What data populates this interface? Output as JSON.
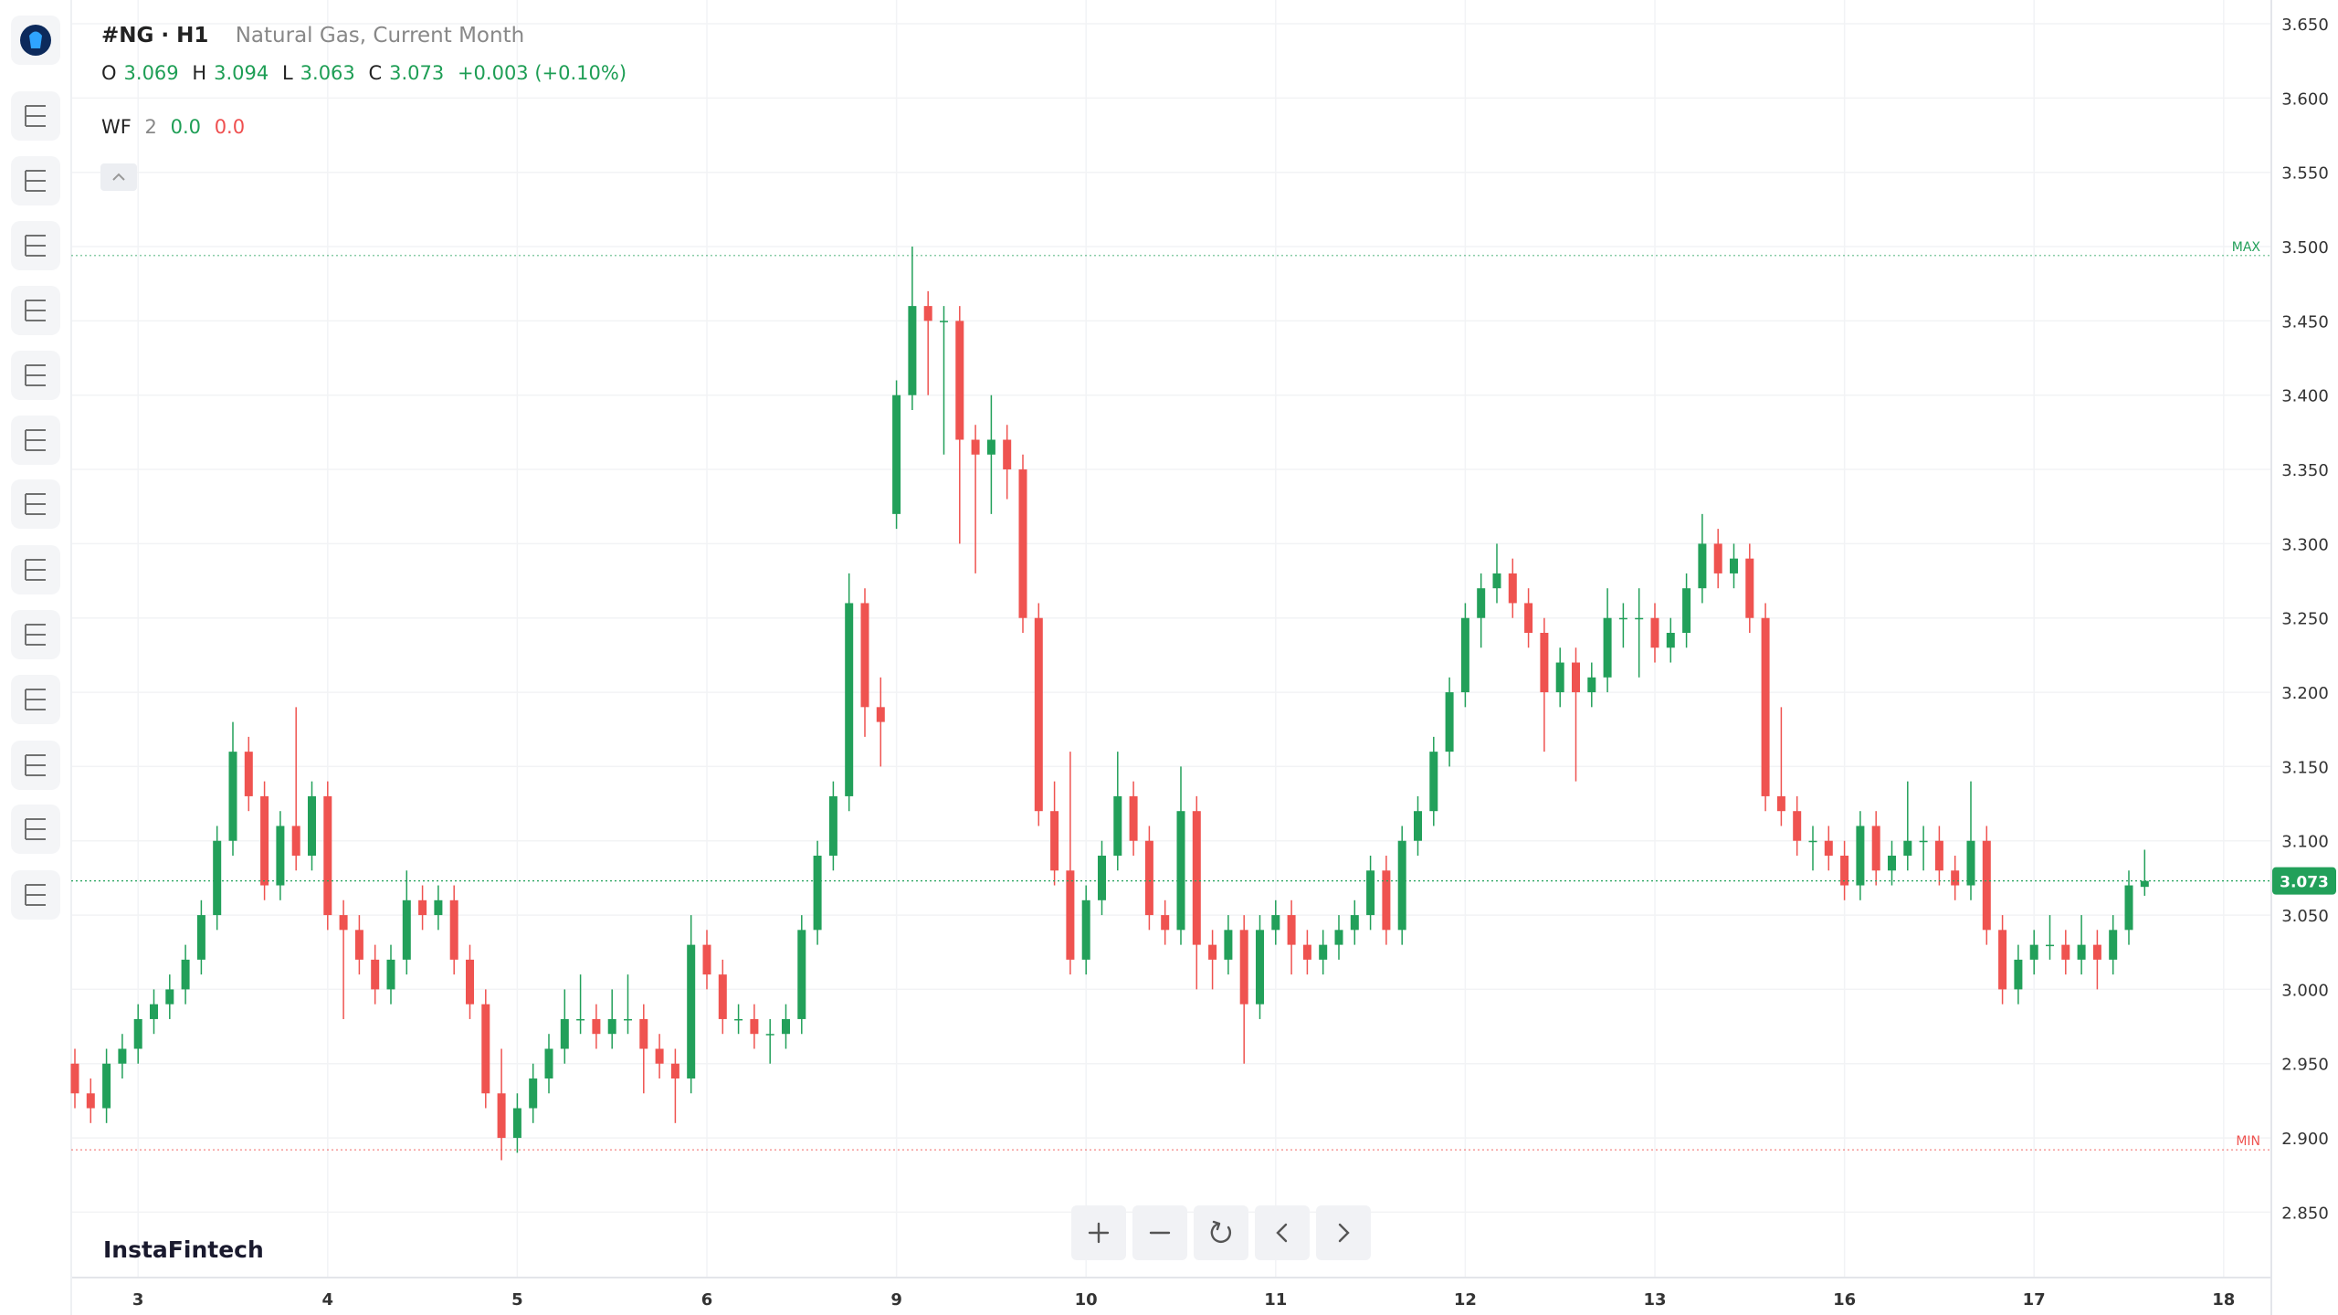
{
  "header": {
    "symbol": "#NG · H1",
    "description": "Natural Gas, Current Month",
    "labels": [
      "O",
      "H",
      "L",
      "C"
    ],
    "change": "+0.003 (+0.10%)",
    "indicator": {
      "name": "WF",
      "period": "2",
      "up": "0.0",
      "down": "0.0"
    },
    "watermark": "InstaFintech"
  },
  "chart_data": {
    "type": "candlestick",
    "up_color": "#22a05a",
    "down_color": "#ef5350",
    "grid": true,
    "ylim": [
      2.806,
      3.666
    ],
    "yticks": [
      {
        "value": 2.85,
        "label": "2.850"
      },
      {
        "value": 2.9,
        "label": "2.900"
      },
      {
        "value": 2.95,
        "label": "2.950"
      },
      {
        "value": 3.0,
        "label": "3.000"
      },
      {
        "value": 3.05,
        "label": "3.050"
      },
      {
        "value": 3.1,
        "label": "3.100"
      },
      {
        "value": 3.15,
        "label": "3.150"
      },
      {
        "value": 3.2,
        "label": "3.200"
      },
      {
        "value": 3.25,
        "label": "3.250"
      },
      {
        "value": 3.3,
        "label": "3.300"
      },
      {
        "value": 3.35,
        "label": "3.350"
      },
      {
        "value": 3.4,
        "label": "3.400"
      },
      {
        "value": 3.45,
        "label": "3.450"
      },
      {
        "value": 3.5,
        "label": "3.500"
      },
      {
        "value": 3.55,
        "label": "3.550"
      },
      {
        "value": 3.6,
        "label": "3.600"
      },
      {
        "value": 3.65,
        "label": "3.650"
      }
    ],
    "max_line": {
      "label": "MAX",
      "value": 3.494
    },
    "min_line": {
      "label": "MIN",
      "value": 2.892
    },
    "categories": [
      null,
      null,
      null,
      null,
      "3",
      null,
      null,
      null,
      null,
      null,
      null,
      null,
      null,
      null,
      null,
      null,
      "4",
      null,
      null,
      null,
      null,
      null,
      null,
      null,
      null,
      null,
      null,
      null,
      "5",
      null,
      null,
      null,
      null,
      null,
      null,
      null,
      null,
      null,
      null,
      null,
      "6",
      null,
      null,
      null,
      null,
      null,
      null,
      null,
      null,
      null,
      null,
      null,
      "9",
      null,
      null,
      null,
      null,
      null,
      null,
      null,
      null,
      null,
      null,
      null,
      "10",
      null,
      null,
      null,
      null,
      null,
      null,
      null,
      null,
      null,
      null,
      null,
      "11",
      null,
      null,
      null,
      null,
      null,
      null,
      null,
      null,
      null,
      null,
      null,
      "12",
      null,
      null,
      null,
      null,
      null,
      null,
      null,
      null,
      null,
      null,
      null,
      "13",
      null,
      null,
      null,
      null,
      null,
      null,
      null,
      null,
      null,
      null,
      null,
      "16",
      null,
      null,
      null,
      null,
      null,
      null,
      null,
      null,
      null,
      null,
      null,
      "17",
      null,
      null,
      null,
      null,
      null,
      null,
      null,
      null,
      null,
      null,
      null,
      "18"
    ],
    "ohlc": [
      [
        2.95,
        2.96,
        2.92,
        2.93
      ],
      [
        2.93,
        2.94,
        2.91,
        2.92
      ],
      [
        2.92,
        2.96,
        2.91,
        2.95
      ],
      [
        2.95,
        2.97,
        2.94,
        2.96
      ],
      [
        2.96,
        2.99,
        2.95,
        2.98
      ],
      [
        2.98,
        3.0,
        2.97,
        2.99
      ],
      [
        2.99,
        3.01,
        2.98,
        3.0
      ],
      [
        3.0,
        3.03,
        2.99,
        3.02
      ],
      [
        3.02,
        3.06,
        3.01,
        3.05
      ],
      [
        3.05,
        3.11,
        3.04,
        3.1
      ],
      [
        3.1,
        3.18,
        3.09,
        3.16
      ],
      [
        3.16,
        3.17,
        3.12,
        3.13
      ],
      [
        3.13,
        3.14,
        3.06,
        3.07
      ],
      [
        3.07,
        3.12,
        3.06,
        3.11
      ],
      [
        3.11,
        3.19,
        3.08,
        3.09
      ],
      [
        3.09,
        3.14,
        3.08,
        3.13
      ],
      [
        3.13,
        3.14,
        3.04,
        3.05
      ],
      [
        3.05,
        3.06,
        2.98,
        3.04
      ],
      [
        3.04,
        3.05,
        3.01,
        3.02
      ],
      [
        3.02,
        3.03,
        2.99,
        3.0
      ],
      [
        3.0,
        3.03,
        2.99,
        3.02
      ],
      [
        3.02,
        3.08,
        3.01,
        3.06
      ],
      [
        3.06,
        3.07,
        3.04,
        3.05
      ],
      [
        3.05,
        3.07,
        3.04,
        3.06
      ],
      [
        3.06,
        3.07,
        3.01,
        3.02
      ],
      [
        3.02,
        3.03,
        2.98,
        2.99
      ],
      [
        2.99,
        3.0,
        2.92,
        2.93
      ],
      [
        2.93,
        2.96,
        2.885,
        2.9
      ],
      [
        2.9,
        2.93,
        2.89,
        2.92
      ],
      [
        2.92,
        2.95,
        2.91,
        2.94
      ],
      [
        2.94,
        2.97,
        2.93,
        2.96
      ],
      [
        2.96,
        3.0,
        2.95,
        2.98
      ],
      [
        2.98,
        3.01,
        2.97,
        2.98
      ],
      [
        2.98,
        2.99,
        2.96,
        2.97
      ],
      [
        2.97,
        3.0,
        2.96,
        2.98
      ],
      [
        2.98,
        3.01,
        2.97,
        2.98
      ],
      [
        2.98,
        2.99,
        2.93,
        2.96
      ],
      [
        2.96,
        2.97,
        2.94,
        2.95
      ],
      [
        2.95,
        2.96,
        2.91,
        2.94
      ],
      [
        2.94,
        3.05,
        2.93,
        3.03
      ],
      [
        3.03,
        3.04,
        3.0,
        3.01
      ],
      [
        3.01,
        3.02,
        2.97,
        2.98
      ],
      [
        2.98,
        2.99,
        2.97,
        2.98
      ],
      [
        2.98,
        2.99,
        2.96,
        2.97
      ],
      [
        2.97,
        2.98,
        2.95,
        2.97
      ],
      [
        2.97,
        2.99,
        2.96,
        2.98
      ],
      [
        2.98,
        3.05,
        2.97,
        3.04
      ],
      [
        3.04,
        3.1,
        3.03,
        3.09
      ],
      [
        3.09,
        3.14,
        3.08,
        3.13
      ],
      [
        3.13,
        3.28,
        3.12,
        3.26
      ],
      [
        3.26,
        3.27,
        3.17,
        3.19
      ],
      [
        3.19,
        3.21,
        3.15,
        3.18
      ],
      [
        3.32,
        3.41,
        3.31,
        3.4
      ],
      [
        3.4,
        3.5,
        3.39,
        3.46
      ],
      [
        3.46,
        3.47,
        3.4,
        3.45
      ],
      [
        3.45,
        3.46,
        3.36,
        3.45
      ],
      [
        3.45,
        3.46,
        3.3,
        3.37
      ],
      [
        3.37,
        3.38,
        3.28,
        3.36
      ],
      [
        3.36,
        3.4,
        3.32,
        3.37
      ],
      [
        3.37,
        3.38,
        3.33,
        3.35
      ],
      [
        3.35,
        3.36,
        3.24,
        3.25
      ],
      [
        3.25,
        3.26,
        3.11,
        3.12
      ],
      [
        3.12,
        3.14,
        3.07,
        3.08
      ],
      [
        3.08,
        3.16,
        3.01,
        3.02
      ],
      [
        3.02,
        3.07,
        3.01,
        3.06
      ],
      [
        3.06,
        3.1,
        3.05,
        3.09
      ],
      [
        3.09,
        3.16,
        3.08,
        3.13
      ],
      [
        3.13,
        3.14,
        3.09,
        3.1
      ],
      [
        3.1,
        3.11,
        3.04,
        3.05
      ],
      [
        3.05,
        3.06,
        3.03,
        3.04
      ],
      [
        3.04,
        3.15,
        3.03,
        3.12
      ],
      [
        3.12,
        3.13,
        3.0,
        3.03
      ],
      [
        3.03,
        3.04,
        3.0,
        3.02
      ],
      [
        3.02,
        3.05,
        3.01,
        3.04
      ],
      [
        3.04,
        3.05,
        2.95,
        2.99
      ],
      [
        2.99,
        3.05,
        2.98,
        3.04
      ],
      [
        3.04,
        3.06,
        3.03,
        3.05
      ],
      [
        3.05,
        3.06,
        3.01,
        3.03
      ],
      [
        3.03,
        3.04,
        3.01,
        3.02
      ],
      [
        3.02,
        3.04,
        3.01,
        3.03
      ],
      [
        3.03,
        3.05,
        3.02,
        3.04
      ],
      [
        3.04,
        3.06,
        3.03,
        3.05
      ],
      [
        3.05,
        3.09,
        3.04,
        3.08
      ],
      [
        3.08,
        3.09,
        3.03,
        3.04
      ],
      [
        3.04,
        3.11,
        3.03,
        3.1
      ],
      [
        3.1,
        3.13,
        3.09,
        3.12
      ],
      [
        3.12,
        3.17,
        3.11,
        3.16
      ],
      [
        3.16,
        3.21,
        3.15,
        3.2
      ],
      [
        3.2,
        3.26,
        3.19,
        3.25
      ],
      [
        3.25,
        3.28,
        3.23,
        3.27
      ],
      [
        3.27,
        3.3,
        3.26,
        3.28
      ],
      [
        3.28,
        3.29,
        3.25,
        3.26
      ],
      [
        3.26,
        3.27,
        3.23,
        3.24
      ],
      [
        3.24,
        3.25,
        3.16,
        3.2
      ],
      [
        3.2,
        3.23,
        3.19,
        3.22
      ],
      [
        3.22,
        3.23,
        3.14,
        3.2
      ],
      [
        3.2,
        3.22,
        3.19,
        3.21
      ],
      [
        3.21,
        3.27,
        3.2,
        3.25
      ],
      [
        3.25,
        3.26,
        3.23,
        3.25
      ],
      [
        3.25,
        3.27,
        3.21,
        3.25
      ],
      [
        3.25,
        3.26,
        3.22,
        3.23
      ],
      [
        3.23,
        3.25,
        3.22,
        3.24
      ],
      [
        3.24,
        3.28,
        3.23,
        3.27
      ],
      [
        3.27,
        3.32,
        3.26,
        3.3
      ],
      [
        3.3,
        3.31,
        3.27,
        3.28
      ],
      [
        3.28,
        3.3,
        3.27,
        3.29
      ],
      [
        3.29,
        3.3,
        3.24,
        3.25
      ],
      [
        3.25,
        3.26,
        3.12,
        3.13
      ],
      [
        3.13,
        3.19,
        3.11,
        3.12
      ],
      [
        3.12,
        3.13,
        3.09,
        3.1
      ],
      [
        3.1,
        3.11,
        3.08,
        3.1
      ],
      [
        3.1,
        3.11,
        3.08,
        3.09
      ],
      [
        3.09,
        3.1,
        3.06,
        3.07
      ],
      [
        3.07,
        3.12,
        3.06,
        3.11
      ],
      [
        3.11,
        3.12,
        3.07,
        3.08
      ],
      [
        3.08,
        3.1,
        3.07,
        3.09
      ],
      [
        3.09,
        3.14,
        3.08,
        3.1
      ],
      [
        3.1,
        3.11,
        3.08,
        3.1
      ],
      [
        3.1,
        3.11,
        3.07,
        3.08
      ],
      [
        3.08,
        3.09,
        3.06,
        3.07
      ],
      [
        3.07,
        3.14,
        3.06,
        3.1
      ],
      [
        3.1,
        3.11,
        3.03,
        3.04
      ],
      [
        3.04,
        3.05,
        2.99,
        3.0
      ],
      [
        3.0,
        3.03,
        2.99,
        3.02
      ],
      [
        3.02,
        3.04,
        3.01,
        3.03
      ],
      [
        3.03,
        3.05,
        3.02,
        3.03
      ],
      [
        3.03,
        3.04,
        3.01,
        3.02
      ],
      [
        3.02,
        3.05,
        3.01,
        3.03
      ],
      [
        3.03,
        3.04,
        3.0,
        3.02
      ],
      [
        3.02,
        3.05,
        3.01,
        3.04
      ],
      [
        3.04,
        3.08,
        3.03,
        3.07
      ],
      [
        3.069,
        3.094,
        3.063,
        3.073
      ],
      null,
      null,
      null,
      null,
      null
    ]
  }
}
